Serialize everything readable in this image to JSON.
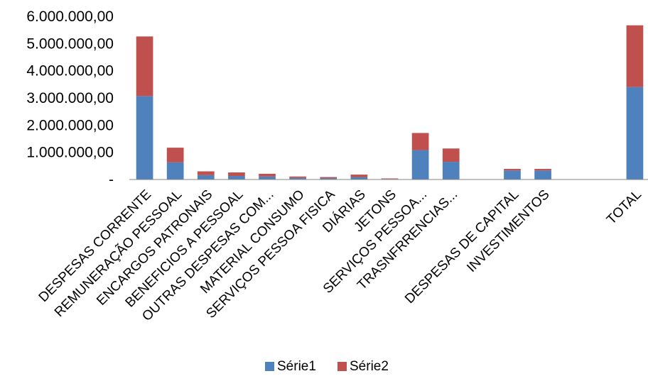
{
  "chart_data": {
    "type": "bar",
    "stacked": true,
    "title": "",
    "xlabel": "",
    "ylabel": "",
    "ylim": [
      0,
      6000000
    ],
    "y_ticks": [
      0,
      1000000,
      2000000,
      3000000,
      4000000,
      5000000,
      6000000
    ],
    "y_tick_labels": [
      "-",
      "1.000.000,00",
      "2.000.000,00",
      "3.000.000,00",
      "4.000.000,00",
      "5.000.000,00",
      "6.000.000,00"
    ],
    "grid": false,
    "legend_position": "bottom",
    "categories": [
      "DESPESAS CORRENTE",
      "REMUNERAÇÃO PESSOAL",
      "ENCARGOS PATRONAIS",
      "BENEFICIOS A PESSOAL",
      "OUTRAS DESPESAS COM...",
      "MATERIAL CONSUMO",
      "SERVIÇOS PESSOA FISICA",
      "DIÁRIAS",
      "JETONS",
      "SERVIÇOS PESSOA...",
      "TRASNFRRENCIAS...",
      "",
      "DESPESAS DE CAPITAL",
      "INVESTIMENTOS",
      "",
      "",
      "TOTAL"
    ],
    "series": [
      {
        "name": "Série1",
        "color": "#4F81BD",
        "values": [
          3070000,
          630000,
          160000,
          130000,
          110000,
          60000,
          50000,
          90000,
          20000,
          1080000,
          650000,
          0,
          330000,
          330000,
          0,
          0,
          3400000
        ]
      },
      {
        "name": "Série2",
        "color": "#C0504D",
        "values": [
          2190000,
          540000,
          140000,
          130000,
          100000,
          50000,
          40000,
          90000,
          20000,
          630000,
          490000,
          0,
          60000,
          60000,
          0,
          0,
          2270000
        ]
      }
    ]
  }
}
